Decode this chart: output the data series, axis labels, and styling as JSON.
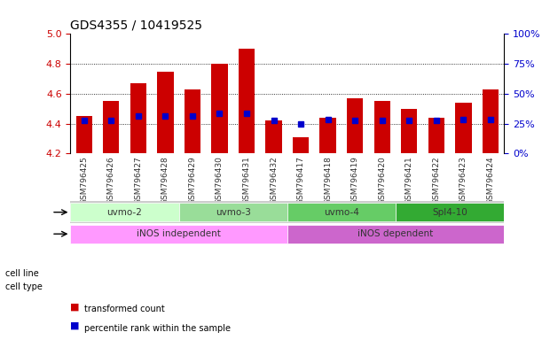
{
  "title": "GDS4355 / 10419525",
  "samples": [
    "GSM796425",
    "GSM796426",
    "GSM796427",
    "GSM796428",
    "GSM796429",
    "GSM796430",
    "GSM796431",
    "GSM796432",
    "GSM796417",
    "GSM796418",
    "GSM796419",
    "GSM796420",
    "GSM796421",
    "GSM796422",
    "GSM796423",
    "GSM796424"
  ],
  "bar_heights": [
    4.45,
    4.55,
    4.67,
    4.75,
    4.63,
    4.8,
    4.9,
    4.42,
    4.31,
    4.44,
    4.57,
    4.55,
    4.5,
    4.44,
    4.54,
    4.63
  ],
  "percentile_values": [
    4.42,
    4.42,
    4.45,
    4.45,
    4.45,
    4.47,
    4.47,
    4.42,
    4.4,
    4.43,
    4.42,
    4.42,
    4.42,
    4.42,
    4.43,
    4.43
  ],
  "ymin": 4.2,
  "ymax": 5.0,
  "yticks": [
    4.2,
    4.4,
    4.6,
    4.8,
    5.0
  ],
  "right_yticks": [
    0,
    25,
    50,
    75,
    100
  ],
  "bar_color": "#cc0000",
  "percentile_color": "#0000cc",
  "cell_lines": [
    {
      "label": "uvmo-2",
      "start": 0,
      "end": 3,
      "color": "#ccffcc"
    },
    {
      "label": "uvmo-3",
      "start": 4,
      "end": 7,
      "color": "#99ee99"
    },
    {
      "label": "uvmo-4",
      "start": 8,
      "end": 11,
      "color": "#66dd66"
    },
    {
      "label": "Spl4-10",
      "start": 12,
      "end": 15,
      "color": "#33cc33"
    }
  ],
  "cell_types": [
    {
      "label": "iNOS independent",
      "start": 0,
      "end": 7,
      "color": "#ff99ff"
    },
    {
      "label": "iNOS dependent",
      "start": 8,
      "end": 15,
      "color": "#cc66cc"
    }
  ],
  "legend_items": [
    {
      "label": "transformed count",
      "color": "#cc0000"
    },
    {
      "label": "percentile rank within the sample",
      "color": "#0000cc"
    }
  ],
  "grid_color": "#000000",
  "axis_label_color_left": "#cc0000",
  "axis_label_color_right": "#0000cc",
  "tick_label_color": "#666666",
  "bar_width": 0.6
}
